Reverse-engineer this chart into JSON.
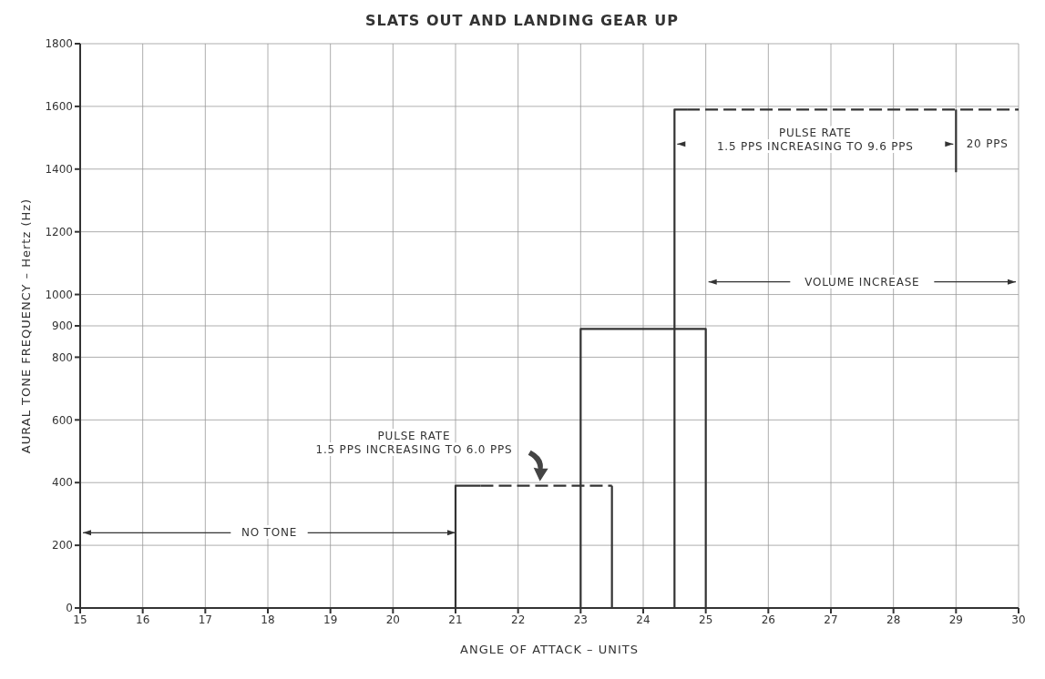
{
  "chart_data": {
    "type": "line",
    "title": "SLATS OUT AND LANDING GEAR UP",
    "xlabel": "ANGLE OF ATTACK – UNITS",
    "ylabel": "AURAL TONE FREQUENCY – Hertz (Hz)",
    "xlim": [
      15,
      30
    ],
    "xticks": [
      15,
      16,
      17,
      18,
      19,
      20,
      21,
      22,
      23,
      24,
      25,
      26,
      27,
      28,
      29,
      30
    ],
    "ylim": [
      0,
      1800
    ],
    "yticks": [
      0,
      200,
      400,
      600,
      800,
      900,
      1000,
      1200,
      1400,
      1600,
      1800
    ],
    "grid": true,
    "legend": false,
    "marker": "none",
    "series": [
      {
        "color": "#333333",
        "line_style": "solid",
        "x": [
          21,
          21,
          21.4
        ],
        "values": [
          0,
          390,
          390
        ]
      },
      {
        "color": "#333333",
        "line_style": "dashed",
        "x": [
          21.4,
          23.5
        ],
        "values": [
          390,
          390
        ]
      },
      {
        "color": "#333333",
        "line_style": "solid",
        "x": [
          23.5,
          23.5
        ],
        "values": [
          390,
          0
        ]
      },
      {
        "color": "#333333",
        "line_style": "solid",
        "x": [
          23,
          23,
          25,
          25
        ],
        "values": [
          0,
          890,
          890,
          0
        ]
      },
      {
        "color": "#333333",
        "line_style": "solid",
        "x": [
          24.5,
          24.5,
          24.7
        ],
        "values": [
          0,
          1590,
          1590
        ]
      },
      {
        "color": "#333333",
        "line_style": "dashed",
        "x": [
          24.7,
          30
        ],
        "values": [
          1590,
          1590
        ]
      },
      {
        "color": "#333333",
        "line_style": "solid",
        "x": [
          29,
          29
        ],
        "values": [
          1390,
          1590
        ]
      }
    ],
    "annotations": [
      {
        "text": "NO TONE",
        "x": 21,
        "y": 240
      },
      "PULSE RATE\n1.5 PPS INCREASING TO 6.0 PPS",
      "PULSE RATE\n1.5 PPS INCREASING TO 9.6 PPS",
      "20 PPS",
      "VOLUME INCREASE"
    ]
  }
}
